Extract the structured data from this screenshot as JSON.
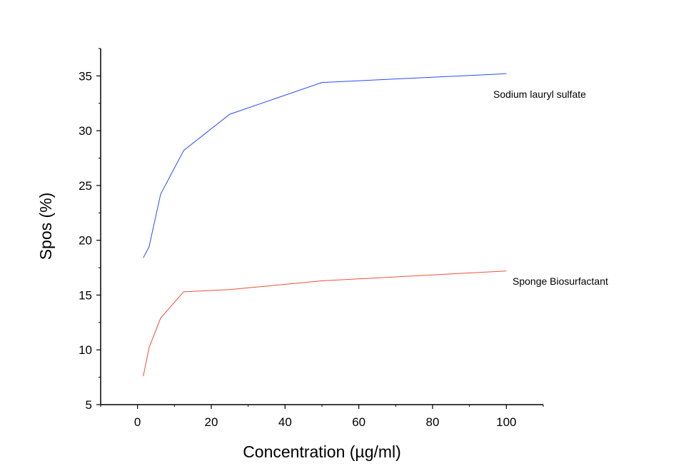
{
  "chart_data": {
    "type": "line",
    "title": "",
    "xlabel": "Concentration (µg/ml)",
    "ylabel": "Spos (%)",
    "xlim": [
      -10,
      110
    ],
    "ylim": [
      5,
      37.5
    ],
    "xticks": [
      0,
      20,
      40,
      60,
      80,
      100
    ],
    "yticks": [
      5,
      10,
      15,
      20,
      25,
      30,
      35
    ],
    "grid": false,
    "x": [
      1.5625,
      3.125,
      6.25,
      12.5,
      25,
      50,
      100
    ],
    "series": [
      {
        "name": "Sodium lauryl sulfate",
        "color": "#2b4bff",
        "values": [
          18.4,
          19.4,
          24.2,
          28.2,
          31.5,
          34.4,
          35.2
        ]
      },
      {
        "name": "Sponge Biosurfactant",
        "color": "#f0503c",
        "values": [
          7.6,
          10.2,
          12.9,
          15.3,
          15.5,
          16.3,
          17.2
        ]
      }
    ]
  }
}
